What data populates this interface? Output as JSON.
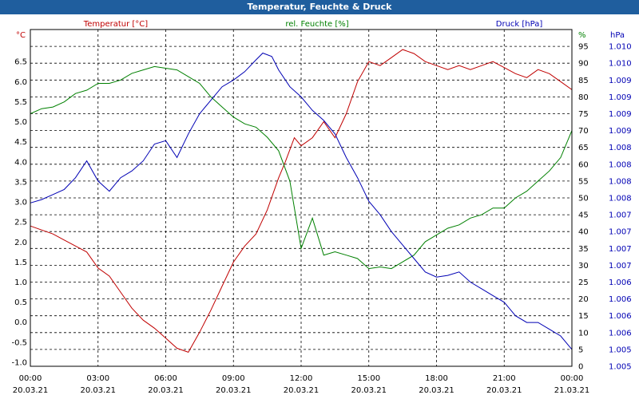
{
  "window": {
    "title": "Temperatur, Feuchte & Druck"
  },
  "chart_data": {
    "type": "line",
    "title": "Temperatur, Feuchte & Druck",
    "x_ticks": [
      {
        "time": "00:00",
        "date": "20.03.21"
      },
      {
        "time": "03:00",
        "date": "20.03.21"
      },
      {
        "time": "06:00",
        "date": "20.03.21"
      },
      {
        "time": "09:00",
        "date": "20.03.21"
      },
      {
        "time": "12:00",
        "date": "20.03.21"
      },
      {
        "time": "15:00",
        "date": "20.03.21"
      },
      {
        "time": "18:00",
        "date": "20.03.21"
      },
      {
        "time": "21:00",
        "date": "20.03.21"
      },
      {
        "time": "00:00",
        "date": "21.03.21"
      }
    ],
    "xlim_hours": [
      0,
      24
    ],
    "grid": true,
    "axes": {
      "temp": {
        "label": "Temperatur [°C]",
        "unit": "°C",
        "min": -1.1,
        "max": 7.3,
        "ticks": [
          "-1.0",
          "-0.5",
          "0.0",
          "0.5",
          "1.0",
          "1.5",
          "2.0",
          "2.5",
          "3.0",
          "3.5",
          "4.0",
          "4.5",
          "5.0",
          "5.5",
          "6.0",
          "6.5"
        ],
        "color": "#c00000"
      },
      "hum": {
        "label": "rel. Feuchte [%]",
        "unit": "%",
        "min": 0,
        "max": 100,
        "ticks": [
          "0",
          "5",
          "10",
          "15",
          "20",
          "25",
          "30",
          "35",
          "40",
          "45",
          "50",
          "55",
          "60",
          "65",
          "70",
          "75",
          "80",
          "85",
          "90",
          "95"
        ],
        "color": "#008000"
      },
      "press": {
        "label": "Druck [hPa]",
        "unit": "hPa",
        "ticks": [
          "1.010",
          "1.010",
          "1.009",
          "1.009",
          "1.009",
          "1.009",
          "1.008",
          "1.008",
          "1.008",
          "1.008",
          "1.007",
          "1.007",
          "1.007",
          "1.007",
          "1.006",
          "1.006",
          "1.006",
          "1.006",
          "1.005",
          "1.005"
        ],
        "color": "#0000b4"
      }
    },
    "series": [
      {
        "name": "Temperatur [°C]",
        "axis": "temp",
        "color": "#c00000",
        "x": [
          0,
          0.5,
          1,
          1.5,
          2,
          2.5,
          3,
          3.5,
          4,
          4.5,
          5,
          5.5,
          6,
          6.5,
          7,
          7.5,
          8,
          8.5,
          9,
          9.5,
          10,
          10.5,
          11,
          11.3,
          11.7,
          12,
          12.5,
          13,
          13.5,
          14,
          14.5,
          15,
          15.5,
          16,
          16.5,
          17,
          17.5,
          18,
          18.5,
          19,
          19.5,
          20,
          20.5,
          21,
          21.5,
          22,
          22.5,
          23,
          23.5,
          24
        ],
        "y": [
          2.4,
          2.3,
          2.2,
          2.05,
          1.9,
          1.75,
          1.35,
          1.15,
          0.75,
          0.35,
          0.05,
          -0.15,
          -0.4,
          -0.65,
          -0.75,
          -0.25,
          0.3,
          0.9,
          1.5,
          1.9,
          2.2,
          2.8,
          3.6,
          4.0,
          4.6,
          4.4,
          4.6,
          5.0,
          4.6,
          5.2,
          6.0,
          6.5,
          6.4,
          6.6,
          6.8,
          6.7,
          6.5,
          6.4,
          6.3,
          6.4,
          6.3,
          6.4,
          6.5,
          6.35,
          6.2,
          6.1,
          6.3,
          6.2,
          6.0,
          5.8
        ]
      },
      {
        "name": "rel. Feuchte [%]",
        "axis": "hum",
        "color": "#008000",
        "x": [
          0,
          0.5,
          1,
          1.5,
          2,
          2.5,
          3,
          3.5,
          4,
          4.5,
          5,
          5.5,
          6,
          6.5,
          7,
          7.5,
          8,
          8.5,
          9,
          9.5,
          10,
          10.5,
          11,
          11.5,
          12,
          12.5,
          13,
          13.5,
          14,
          14.5,
          15,
          15.5,
          16,
          16.5,
          17,
          17.5,
          18,
          18.5,
          19,
          19.5,
          20,
          20.5,
          21,
          21.5,
          22,
          22.5,
          23,
          23.5,
          24
        ],
        "y": [
          75,
          76.5,
          77,
          78.5,
          81,
          82,
          84,
          84,
          85,
          87,
          88,
          89,
          88.5,
          88,
          86,
          84,
          80,
          77,
          74,
          72,
          71,
          68,
          64,
          55,
          35,
          44,
          33,
          34,
          33,
          32,
          29,
          29.5,
          29,
          31,
          33,
          37,
          39,
          41,
          42,
          44,
          45,
          47,
          47,
          50,
          52,
          55,
          58,
          62,
          70
        ]
      },
      {
        "name": "Druck [hPa]",
        "axis": "press",
        "color": "#0000b4",
        "x": [
          0,
          0.5,
          1,
          1.5,
          2,
          2.5,
          3,
          3.5,
          4,
          4.5,
          5,
          5.5,
          6,
          6.5,
          7,
          7.5,
          8,
          8.5,
          9,
          9.5,
          10,
          10.3,
          10.7,
          11,
          11.5,
          12,
          12.5,
          13,
          13.5,
          14,
          14.5,
          15,
          15.5,
          16,
          16.5,
          17,
          17.5,
          18,
          18.5,
          19,
          19.5,
          20,
          20.5,
          21,
          21.5,
          22,
          22.5,
          23,
          23.5,
          24
        ],
        "y": [
          48.5,
          49.5,
          51,
          52.5,
          56,
          61,
          55,
          52,
          56,
          58,
          61,
          66,
          67,
          62,
          69,
          75,
          79,
          83,
          85,
          87.5,
          91,
          93,
          92,
          88,
          83,
          80,
          76,
          73,
          69,
          62,
          56,
          49,
          45,
          40,
          36,
          32,
          28,
          26.5,
          27,
          28,
          25,
          23,
          21,
          19,
          15,
          13,
          13,
          11,
          9,
          5
        ]
      }
    ]
  }
}
